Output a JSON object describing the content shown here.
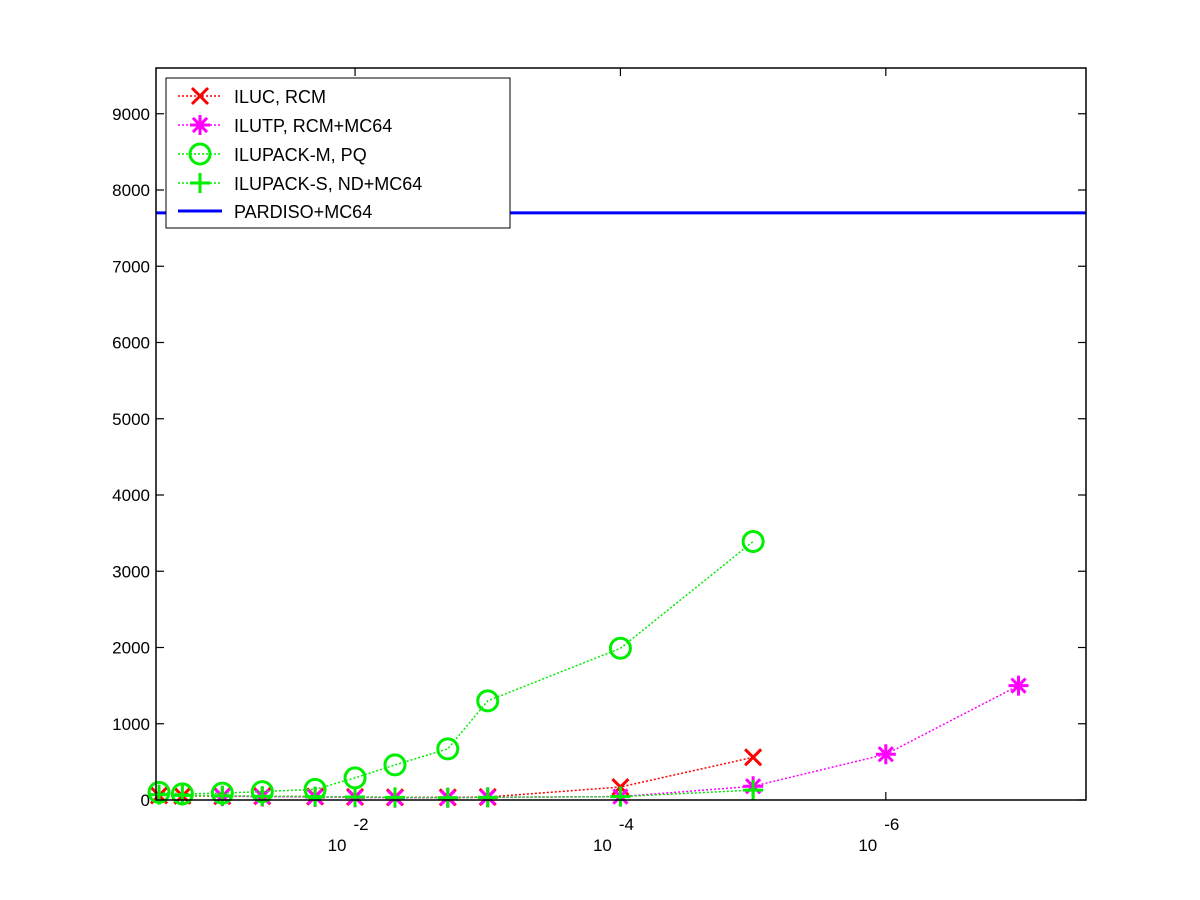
{
  "chart_data": {
    "type": "line",
    "title": "",
    "xlabel": "",
    "ylabel": "",
    "x_scale": "log",
    "x_reversed": true,
    "xlim": [
      0.3162,
      3.1e-08
    ],
    "ylim": [
      0,
      9600
    ],
    "xticks": [
      {
        "value": 0.01,
        "base": "10",
        "exp": "-2"
      },
      {
        "value": 0.0001,
        "base": "10",
        "exp": "-4"
      },
      {
        "value": 1e-06,
        "base": "10",
        "exp": "-6"
      }
    ],
    "yticks": [
      {
        "value": 0,
        "label": "0"
      },
      {
        "value": 1000,
        "label": "1000"
      },
      {
        "value": 2000,
        "label": "2000"
      },
      {
        "value": 3000,
        "label": "3000"
      },
      {
        "value": 4000,
        "label": "4000"
      },
      {
        "value": 5000,
        "label": "5000"
      },
      {
        "value": 6000,
        "label": "6000"
      },
      {
        "value": 7000,
        "label": "7000"
      },
      {
        "value": 8000,
        "label": "8000"
      },
      {
        "value": 9000,
        "label": "9000"
      }
    ],
    "legend_position": "top-left",
    "series": [
      {
        "name": "ILUC, RCM",
        "color": "#ff0000",
        "marker": "x",
        "line": "dotted",
        "x": [
          0.3,
          0.2,
          0.1,
          0.05,
          0.02,
          0.01,
          0.005,
          0.002,
          0.001,
          0.0001,
          1e-05
        ],
        "y": [
          60,
          55,
          50,
          50,
          45,
          40,
          35,
          35,
          40,
          170,
          560
        ]
      },
      {
        "name": "ILUTP, RCM+MC64",
        "color": "#ff00ff",
        "marker": "asterisk",
        "line": "dotted",
        "x": [
          0.1,
          0.05,
          0.02,
          0.01,
          0.005,
          0.002,
          0.001,
          0.0001,
          1e-05,
          1e-06,
          1e-07
        ],
        "y": [
          50,
          45,
          40,
          35,
          30,
          30,
          35,
          45,
          180,
          600,
          1500
        ]
      },
      {
        "name": "ILUPACK-M, PQ",
        "color": "#00ee00",
        "marker": "circle",
        "line": "dotted",
        "x": [
          0.3,
          0.2,
          0.1,
          0.05,
          0.02,
          0.01,
          0.005,
          0.002,
          0.001,
          0.0001,
          1e-05
        ],
        "y": [
          100,
          80,
          90,
          110,
          140,
          290,
          460,
          670,
          1300,
          1990,
          3390
        ]
      },
      {
        "name": "ILUPACK-S, ND+MC64",
        "color": "#00ee00",
        "marker": "plus",
        "line": "dotted",
        "x": [
          0.3,
          0.2,
          0.1,
          0.05,
          0.02,
          0.01,
          0.005,
          0.002,
          0.001,
          0.0001,
          1e-05
        ],
        "y": [
          70,
          60,
          55,
          50,
          45,
          40,
          35,
          30,
          35,
          45,
          130
        ]
      },
      {
        "name": "PARDISO+MC64",
        "color": "#0000ff",
        "marker": "none",
        "line": "solid",
        "x": [
          0.3162,
          3.1e-08
        ],
        "y": [
          7700,
          7700
        ]
      }
    ]
  }
}
